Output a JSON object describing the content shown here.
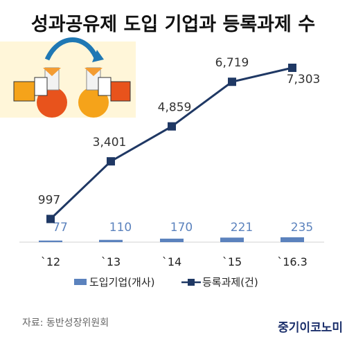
{
  "title": "성과공유제 도입 기업과 등록과제 수",
  "source": "자료: 동반성장위원회",
  "brand": "중기이코노미",
  "chart_data": {
    "type": "bar+line",
    "categories": [
      "`12",
      "`13",
      "`14",
      "`15",
      "`16.3"
    ],
    "series": [
      {
        "name": "도입기업(개사)",
        "type": "bar",
        "values": [
          77,
          110,
          170,
          221,
          235
        ],
        "labels": [
          "77",
          "110",
          "170",
          "221",
          "235"
        ],
        "color": "#5b82bd"
      },
      {
        "name": "등록과제(건)",
        "type": "line",
        "values": [
          997,
          3401,
          4859,
          6719,
          7303
        ],
        "labels": [
          "997",
          "3,401",
          "4,859",
          "6,719",
          "7,303"
        ],
        "color": "#1f3864"
      }
    ],
    "legend_position": "bottom",
    "grid": false
  }
}
